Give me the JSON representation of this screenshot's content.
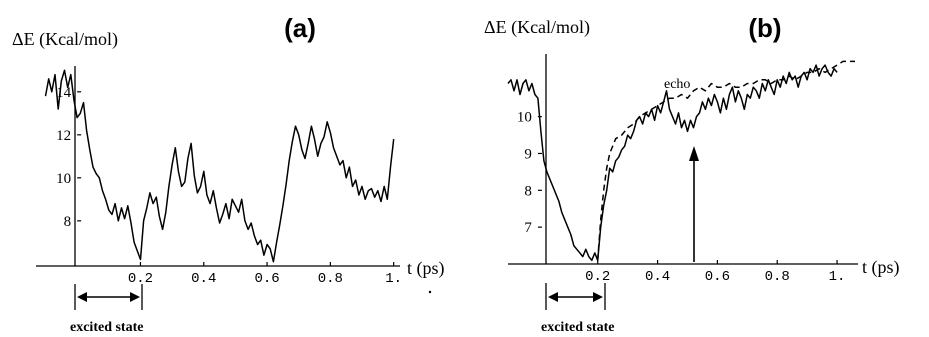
{
  "chart_data": [
    {
      "type": "line",
      "title": "(a)",
      "ylabel": "ΔE (Kcal/mol)",
      "xlabel": "t (ps)",
      "xlim": [
        -0.13,
        1.02
      ],
      "ylim": [
        5.9,
        15.2
      ],
      "xticks": [
        0.2,
        0.4,
        0.6,
        0.8,
        1.0
      ],
      "xtick_labels": [
        "0.2",
        "0.4",
        "0.6",
        "0.8",
        "1."
      ],
      "yticks": [
        8,
        10,
        12,
        14
      ],
      "ytick_labels": [
        "8",
        "10",
        "12",
        "14"
      ],
      "annotation": "excited state",
      "excited_interval": [
        0.0,
        0.2
      ],
      "series": [
        {
          "style": "solid",
          "x": [
            -0.1,
            -0.09,
            -0.08,
            -0.07,
            -0.06,
            -0.05,
            -0.04,
            -0.03,
            -0.02,
            -0.01,
            0.0,
            0.01,
            0.02,
            0.03,
            0.04,
            0.05,
            0.06,
            0.07,
            0.08,
            0.09,
            0.1,
            0.11,
            0.12,
            0.13,
            0.14,
            0.15,
            0.16,
            0.17,
            0.18,
            0.19,
            0.2,
            0.21,
            0.22,
            0.23,
            0.24,
            0.25,
            0.26,
            0.27,
            0.28,
            0.29,
            0.3,
            0.31,
            0.32,
            0.33,
            0.34,
            0.35,
            0.36,
            0.37,
            0.38,
            0.39,
            0.4,
            0.41,
            0.42,
            0.43,
            0.44,
            0.45,
            0.46,
            0.47,
            0.48,
            0.49,
            0.5,
            0.51,
            0.52,
            0.53,
            0.54,
            0.55,
            0.56,
            0.57,
            0.58,
            0.59,
            0.6,
            0.61,
            0.62,
            0.63,
            0.64,
            0.65,
            0.66,
            0.67,
            0.68,
            0.69,
            0.7,
            0.71,
            0.72,
            0.73,
            0.74,
            0.75,
            0.76,
            0.77,
            0.78,
            0.79,
            0.8,
            0.81,
            0.82,
            0.83,
            0.84,
            0.85,
            0.86,
            0.87,
            0.88,
            0.89,
            0.9,
            0.91,
            0.92,
            0.93,
            0.94,
            0.95,
            0.96,
            0.97,
            0.98,
            0.99,
            1.0
          ],
          "y": [
            13.8,
            14.6,
            14.0,
            14.8,
            13.2,
            14.5,
            15.0,
            14.2,
            14.8,
            13.6,
            12.8,
            13.0,
            13.5,
            12.2,
            11.3,
            10.5,
            10.2,
            10.0,
            9.4,
            9.0,
            8.5,
            8.3,
            8.8,
            8.0,
            8.6,
            8.1,
            8.7,
            7.9,
            7.0,
            6.6,
            6.2,
            8.0,
            8.6,
            9.3,
            8.8,
            9.1,
            8.2,
            7.6,
            8.4,
            9.6,
            10.6,
            11.4,
            10.3,
            9.6,
            9.8,
            10.9,
            11.6,
            10.1,
            9.3,
            9.6,
            10.3,
            9.2,
            8.8,
            9.4,
            8.6,
            7.9,
            8.3,
            8.8,
            8.1,
            9.0,
            8.7,
            8.4,
            9.0,
            8.0,
            7.6,
            7.9,
            7.3,
            6.9,
            7.1,
            6.4,
            6.9,
            6.7,
            6.1,
            7.0,
            7.8,
            8.7,
            9.7,
            10.8,
            11.7,
            12.4,
            12.0,
            11.3,
            10.9,
            11.6,
            12.4,
            11.8,
            11.0,
            11.6,
            11.9,
            12.6,
            12.1,
            11.4,
            11.0,
            10.6,
            10.8,
            10.0,
            10.5,
            9.6,
            9.9,
            9.2,
            9.6,
            9.0,
            9.4,
            9.5,
            9.1,
            9.4,
            8.9,
            9.6,
            9.0,
            10.5,
            11.8
          ]
        }
      ]
    },
    {
      "type": "line",
      "title": "(b)",
      "ylabel": "ΔE (Kcal/mol)",
      "xlabel": "t (ps)",
      "xlim": [
        -0.1,
        1.07
      ],
      "ylim": [
        6.0,
        11.7
      ],
      "xticks": [
        0.2,
        0.4,
        0.6,
        0.8,
        1.0
      ],
      "xtick_labels": [
        "0.2",
        "0.4",
        "0.6",
        "0.8",
        "1."
      ],
      "yticks": [
        7,
        8,
        9,
        10
      ],
      "ytick_labels": [
        "7",
        "8",
        "9",
        "10"
      ],
      "annotation": "excited state",
      "annotation_echo": "echo",
      "excited_interval": [
        0.0,
        0.2
      ],
      "arrow_at": 0.5,
      "series": [
        {
          "style": "solid",
          "x": [
            -0.1,
            -0.09,
            -0.08,
            -0.07,
            -0.06,
            -0.05,
            -0.04,
            -0.03,
            -0.02,
            -0.01,
            0.0,
            0.01,
            0.02,
            0.03,
            0.04,
            0.05,
            0.06,
            0.07,
            0.08,
            0.09,
            0.1,
            0.11,
            0.12,
            0.13,
            0.14,
            0.15,
            0.16,
            0.17,
            0.18,
            0.19,
            0.2,
            0.21,
            0.22,
            0.23,
            0.24,
            0.25,
            0.26,
            0.27,
            0.28,
            0.29,
            0.3,
            0.31,
            0.32,
            0.33,
            0.34,
            0.35,
            0.36,
            0.37,
            0.38,
            0.39,
            0.4,
            0.41,
            0.42,
            0.43,
            0.44,
            0.45,
            0.46,
            0.47,
            0.48,
            0.49,
            0.5,
            0.51,
            0.52,
            0.53,
            0.54,
            0.55,
            0.56,
            0.57,
            0.58,
            0.59,
            0.6,
            0.61,
            0.62,
            0.63,
            0.64,
            0.65,
            0.66,
            0.67,
            0.68,
            0.69,
            0.7,
            0.71,
            0.72,
            0.73,
            0.74,
            0.75,
            0.76,
            0.77,
            0.78,
            0.79,
            0.8,
            0.81,
            0.82,
            0.83,
            0.84,
            0.85,
            0.86,
            0.87,
            0.88,
            0.89,
            0.9,
            0.91,
            0.92,
            0.93,
            0.94,
            0.95,
            0.96,
            0.97,
            0.98,
            0.99,
            1.0
          ],
          "y": [
            10.9,
            11.0,
            10.7,
            11.0,
            10.6,
            10.9,
            11.0,
            10.7,
            10.9,
            10.6,
            10.5,
            9.6,
            8.8,
            8.5,
            8.3,
            8.1,
            7.9,
            7.7,
            7.4,
            7.2,
            7.0,
            6.8,
            6.5,
            6.4,
            6.3,
            6.2,
            6.4,
            6.2,
            6.1,
            6.3,
            6.1,
            7.0,
            7.6,
            8.0,
            8.6,
            8.5,
            8.8,
            8.9,
            9.1,
            9.2,
            9.5,
            9.4,
            9.6,
            9.9,
            10.0,
            9.8,
            10.1,
            10.0,
            10.2,
            9.9,
            10.3,
            10.1,
            10.4,
            10.7,
            10.2,
            10.0,
            9.8,
            10.1,
            9.7,
            9.9,
            9.6,
            9.9,
            9.7,
            10.0,
            10.1,
            10.4,
            10.2,
            10.5,
            10.3,
            10.6,
            10.4,
            10.1,
            10.5,
            10.2,
            10.6,
            10.8,
            10.4,
            10.7,
            10.5,
            10.2,
            10.6,
            10.5,
            10.8,
            10.7,
            10.5,
            10.9,
            10.7,
            11.0,
            10.8,
            10.6,
            11.0,
            10.8,
            11.1,
            10.9,
            11.2,
            11.0,
            11.1,
            10.8,
            11.1,
            11.2,
            11.0,
            11.3,
            11.2,
            11.4,
            11.1,
            11.3,
            11.4,
            11.2,
            11.1,
            11.3,
            11.2
          ]
        },
        {
          "style": "dashed",
          "name": "echo",
          "x": [
            0.2,
            0.21,
            0.22,
            0.23,
            0.24,
            0.25,
            0.26,
            0.28,
            0.3,
            0.32,
            0.34,
            0.36,
            0.38,
            0.4,
            0.42,
            0.44,
            0.46,
            0.48,
            0.5,
            0.52,
            0.54,
            0.56,
            0.58,
            0.6,
            0.62,
            0.64,
            0.66,
            0.68,
            0.7,
            0.72,
            0.74,
            0.76,
            0.78,
            0.8,
            0.82,
            0.84,
            0.86,
            0.88,
            0.9,
            0.92,
            0.94,
            0.96,
            0.98,
            1.0,
            1.02,
            1.04,
            1.06
          ],
          "y": [
            6.1,
            7.2,
            8.0,
            8.6,
            9.0,
            9.2,
            9.4,
            9.5,
            9.7,
            9.8,
            10.0,
            10.1,
            10.2,
            10.3,
            10.4,
            10.5,
            10.5,
            10.6,
            10.5,
            10.7,
            10.8,
            10.7,
            10.9,
            10.8,
            10.8,
            10.9,
            10.8,
            10.8,
            10.9,
            10.9,
            11.0,
            11.0,
            10.9,
            11.0,
            11.0,
            11.1,
            11.0,
            11.1,
            11.2,
            11.2,
            11.3,
            11.2,
            11.3,
            11.4,
            11.5,
            11.5,
            11.5
          ]
        }
      ]
    }
  ]
}
